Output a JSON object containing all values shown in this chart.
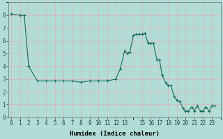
{
  "xlabel": "Humidex (Indice chaleur)",
  "background_color": "#b2ddd6",
  "grid_color": "#d8b8b8",
  "line_color": "#1a6b5a",
  "marker_color": "#1a6b5a",
  "x_values": [
    0,
    1,
    1.5,
    2,
    3,
    4,
    5,
    6,
    7,
    8,
    9,
    10,
    11,
    12,
    12.5,
    13,
    13.3,
    13.6,
    14,
    14.3,
    14.7,
    15,
    15.3,
    15.7,
    16,
    16.3,
    16.7,
    17,
    17.3,
    17.7,
    18,
    18.3,
    18.7,
    19,
    19.3,
    19.7,
    20,
    20.3,
    20.7,
    21,
    21.3,
    21.7,
    22,
    22.3,
    22.7,
    23,
    23.3
  ],
  "y_values": [
    8.1,
    8.0,
    8.0,
    4.0,
    2.85,
    2.85,
    2.85,
    2.85,
    2.85,
    2.75,
    2.85,
    2.85,
    2.85,
    3.0,
    3.8,
    5.2,
    5.0,
    5.1,
    6.4,
    6.5,
    6.5,
    6.5,
    6.6,
    5.8,
    5.8,
    5.8,
    4.5,
    4.5,
    3.3,
    2.7,
    2.5,
    2.5,
    1.6,
    1.35,
    1.25,
    0.7,
    0.5,
    0.5,
    0.8,
    0.5,
    0.9,
    0.5,
    0.5,
    0.8,
    0.5,
    0.9,
    0.9
  ],
  "xlim": [
    -0.3,
    24
  ],
  "ylim": [
    0,
    9
  ],
  "yticks": [
    0,
    1,
    2,
    3,
    4,
    5,
    6,
    7,
    8
  ],
  "xticks": [
    0,
    1,
    2,
    3,
    4,
    5,
    6,
    7,
    8,
    9,
    10,
    11,
    12,
    13,
    15,
    16,
    17,
    18,
    19,
    20,
    21,
    22,
    23
  ],
  "xlabel_fontsize": 6.5,
  "tick_fontsize": 5.5
}
